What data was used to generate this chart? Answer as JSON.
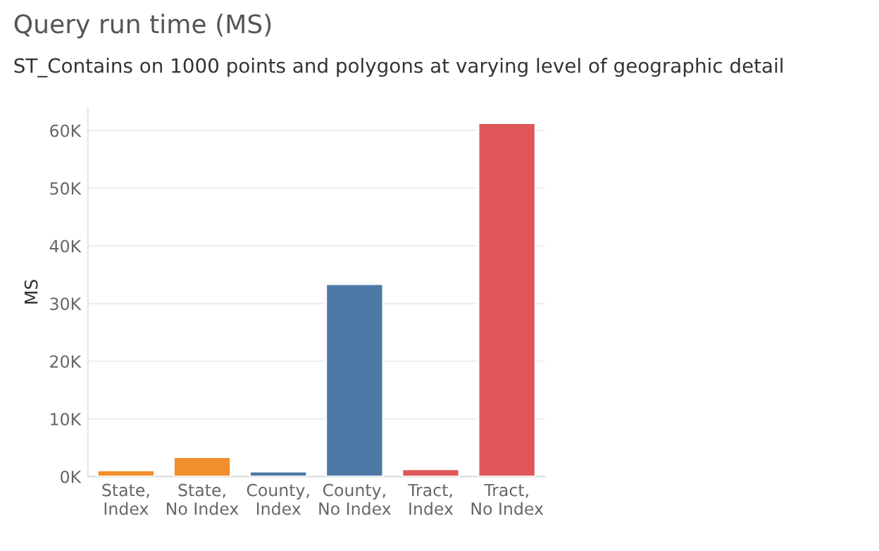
{
  "chart_data": {
    "type": "bar",
    "title": "Query run time (MS)",
    "subtitle": "ST_Contains on 1000 points and polygons at varying level of geographic detail",
    "ylabel": "MS",
    "categories": [
      "State,\nIndex",
      "State,\nNo Index",
      "County,\nIndex",
      "County,\nNo Index",
      "Tract,\nIndex",
      "Tract,\nNo Index"
    ],
    "values": [
      1100,
      3400,
      900,
      33400,
      1300,
      61300
    ],
    "colors": [
      "#f28e2b",
      "#f28e2b",
      "#4e79a7",
      "#4e79a7",
      "#e15759",
      "#e15759"
    ],
    "ylim": [
      0,
      64000
    ],
    "yticks": [
      {
        "value": 0,
        "label": "0K"
      },
      {
        "value": 10000,
        "label": "10K"
      },
      {
        "value": 20000,
        "label": "20K"
      },
      {
        "value": 30000,
        "label": "30K"
      },
      {
        "value": 40000,
        "label": "40K"
      },
      {
        "value": 50000,
        "label": "50K"
      },
      {
        "value": 60000,
        "label": "60K"
      }
    ],
    "grid": "y",
    "legend": false
  }
}
